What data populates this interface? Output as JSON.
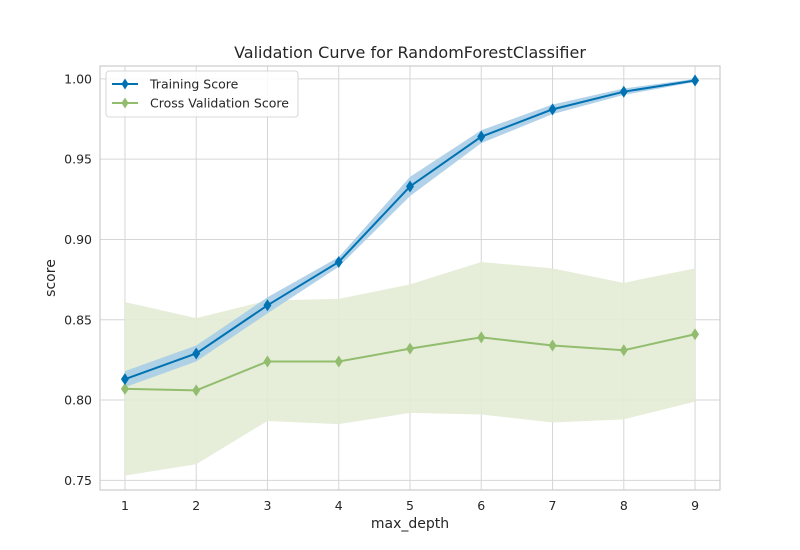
{
  "chart_data": {
    "type": "line",
    "title": "Validation Curve for RandomForestClassifier",
    "xlabel": "max_depth",
    "ylabel": "score",
    "x": [
      1,
      2,
      3,
      4,
      5,
      6,
      7,
      8,
      9
    ],
    "xlim": [
      0.65,
      9.35
    ],
    "ylim": [
      0.744,
      1.008
    ],
    "xticks": [
      "1",
      "2",
      "3",
      "4",
      "5",
      "6",
      "7",
      "8",
      "9"
    ],
    "yticks": [
      "0.75",
      "0.80",
      "0.85",
      "0.90",
      "0.95",
      "1.00"
    ],
    "grid": true,
    "legend_position": "top-left",
    "series": [
      {
        "name": "Training Score",
        "values": [
          0.813,
          0.829,
          0.859,
          0.886,
          0.933,
          0.964,
          0.981,
          0.992,
          0.999
        ],
        "band_upper": [
          0.818,
          0.834,
          0.864,
          0.889,
          0.939,
          0.968,
          0.984,
          0.994,
          1.0
        ],
        "band_lower": [
          0.808,
          0.824,
          0.854,
          0.883,
          0.927,
          0.96,
          0.978,
          0.99,
          0.998
        ],
        "color": "#0072B2",
        "band_color": "#a8cde6",
        "marker": "diamond"
      },
      {
        "name": "Cross Validation Score",
        "values": [
          0.807,
          0.806,
          0.824,
          0.824,
          0.832,
          0.839,
          0.834,
          0.831,
          0.841
        ],
        "band_upper": [
          0.861,
          0.851,
          0.862,
          0.863,
          0.872,
          0.886,
          0.882,
          0.873,
          0.882
        ],
        "band_lower": [
          0.753,
          0.76,
          0.787,
          0.785,
          0.792,
          0.791,
          0.786,
          0.788,
          0.799
        ],
        "color": "#93bd6e",
        "band_color": "#e3ecd6",
        "marker": "diamond"
      }
    ]
  }
}
